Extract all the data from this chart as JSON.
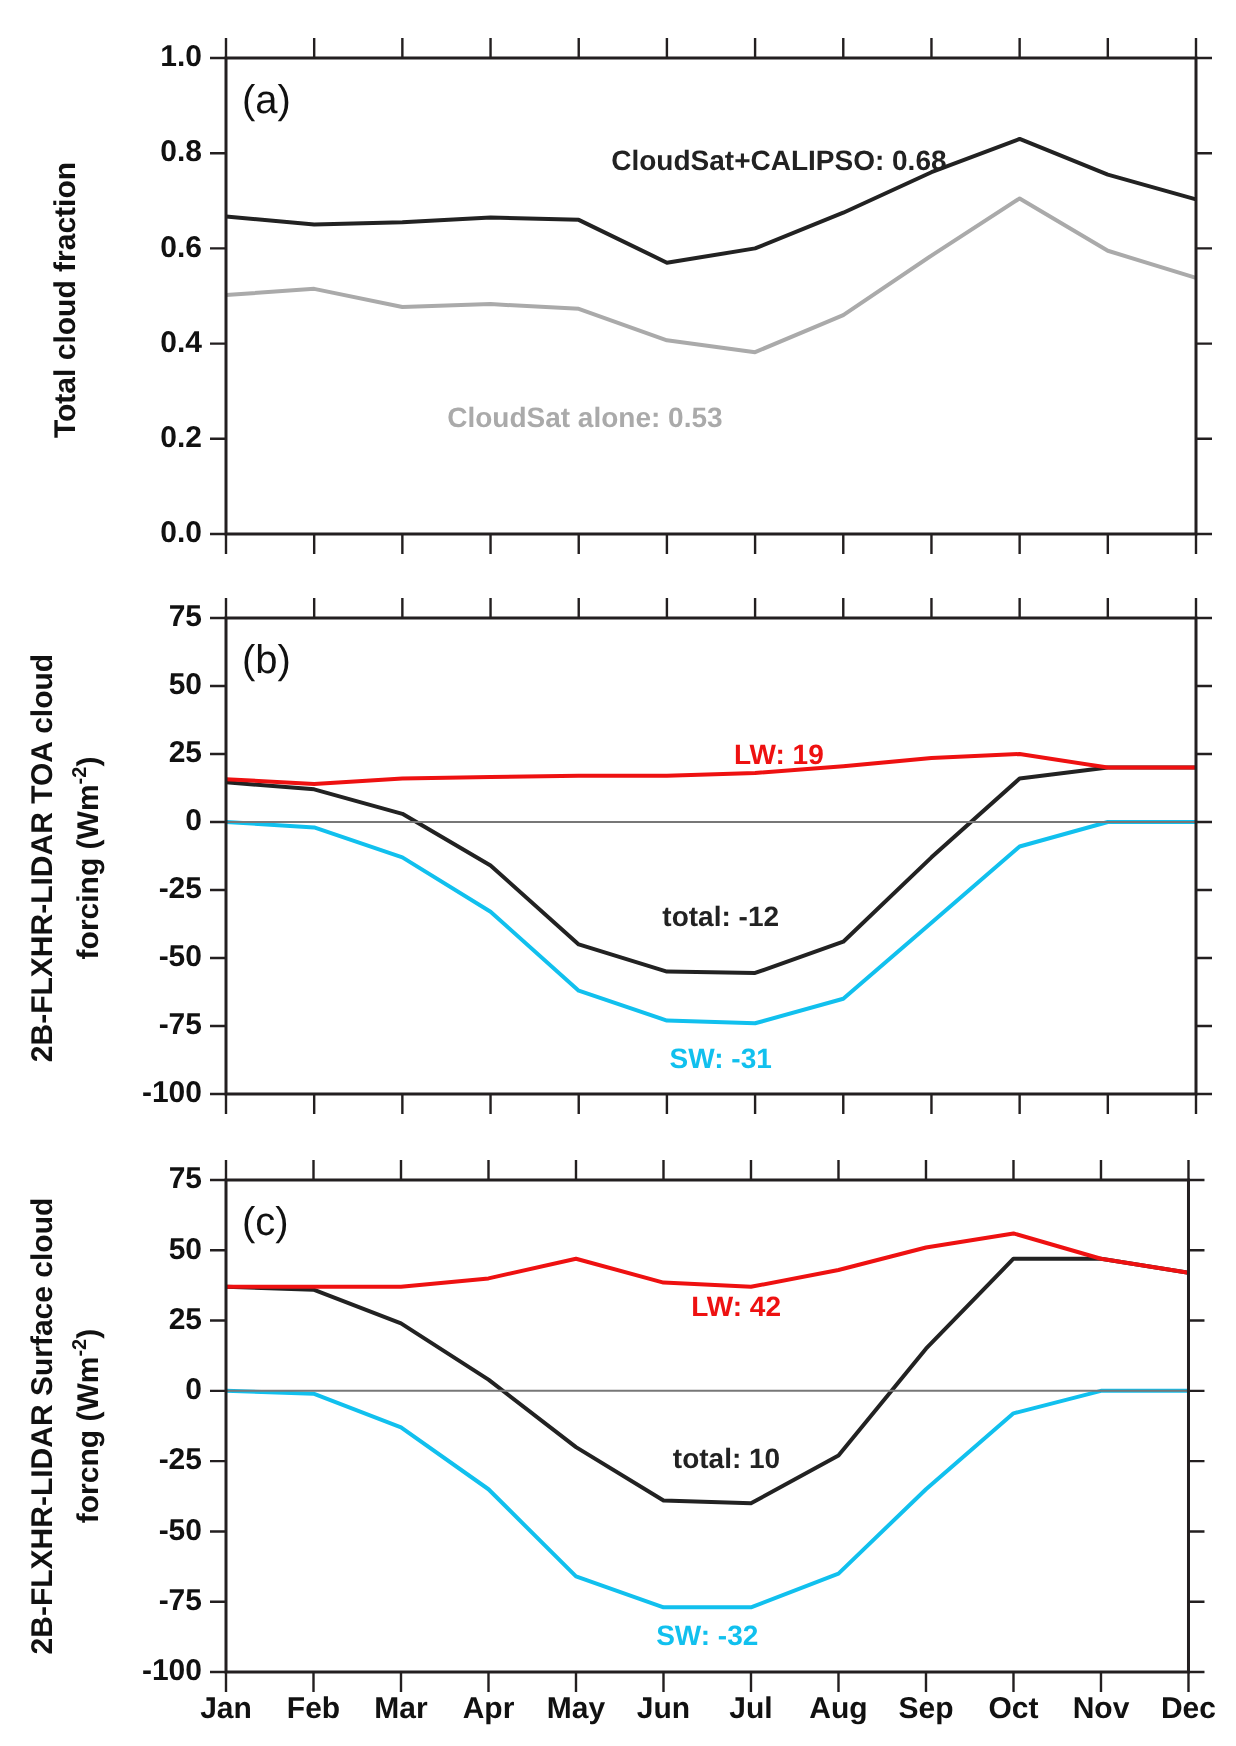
{
  "chart_data": [
    {
      "type": "line",
      "categories": [
        null,
        null,
        null,
        null,
        null,
        null,
        null,
        null,
        null,
        null,
        null,
        null
      ],
      "ylabel": "Total cloud fraction",
      "ylim": [
        0,
        1
      ],
      "yticks": [
        {
          "value": 0,
          "label": "0.0"
        },
        0.2,
        0.4,
        0.6,
        0.8,
        {
          "value": 1,
          "label": "1.0"
        }
      ],
      "tick_labels": "y",
      "grid": false,
      "legend": false,
      "marker": "none",
      "line_style": "solid",
      "annotations": [
        "(a)"
      ],
      "series": [
        {
          "name": "CloudSat+CALIPSO: 0.68",
          "color": "#222222",
          "values": [
            0.667,
            0.65,
            0.655,
            0.665,
            0.66,
            0.57,
            0.6,
            0.675,
            0.76,
            0.83,
            0.755,
            0.703
          ]
        },
        {
          "name": "CloudSat alone: 0.53",
          "color": "#aaaaaa",
          "values": [
            0.502,
            0.515,
            0.477,
            0.483,
            0.473,
            0.407,
            0.382,
            0.46,
            0.585,
            0.705,
            0.595,
            0.538
          ]
        }
      ]
    },
    {
      "type": "line",
      "categories": [
        null,
        null,
        null,
        null,
        null,
        null,
        null,
        null,
        null,
        null,
        null,
        null
      ],
      "ylabel": "2B-FLXHR-LIDAR TOA cloud forcing (Wm$^{-2}$)",
      "ylim": [
        -100,
        75
      ],
      "yticks": [
        -100,
        -75,
        -50,
        -25,
        0,
        25,
        50,
        75
      ],
      "tick_labels": "y",
      "grid": false,
      "legend": false,
      "marker": "none",
      "line_style": "solid",
      "annotations": [
        "(b)"
      ],
      "ref_lines": [
        {
          "axis": "y",
          "value": 0,
          "color": "#777777"
        }
      ],
      "series": [
        {
          "name": "LW: 19",
          "color": "#ee1111",
          "values": [
            15.7,
            14,
            16,
            16.5,
            17,
            17,
            18,
            20.5,
            23.5,
            25,
            20,
            20
          ]
        },
        {
          "name": "total: -12",
          "color": "#222222",
          "values": [
            14.6,
            12,
            3,
            -16,
            -45,
            -55,
            -55.5,
            -44,
            -13,
            16,
            20,
            20
          ]
        },
        {
          "name": "SW: -31",
          "color": "#11c0ee",
          "values": [
            0,
            -2,
            -13,
            -33,
            -62,
            -73,
            -74,
            -65,
            -37,
            -9,
            0,
            0
          ]
        }
      ]
    },
    {
      "type": "line",
      "categories": [
        "Jan",
        "Feb",
        "Mar",
        "Apr",
        "May",
        "Jun",
        "Jul",
        "Aug",
        "Sep",
        "Oct",
        "Nov",
        "Dec"
      ],
      "ylabel": "2B-FLXHR-LIDAR Surface cloud forcng (Wm$^{-2}$)",
      "ylim": [
        -100,
        75
      ],
      "yticks": [
        -100,
        -75,
        -50,
        -25,
        0,
        25,
        50,
        75
      ],
      "grid": false,
      "legend": false,
      "marker": "none",
      "line_style": "solid",
      "annotations": [
        "(c)"
      ],
      "ref_lines": [
        {
          "axis": "y",
          "value": 0,
          "color": "#777777"
        }
      ],
      "series": [
        {
          "name": "LW: 42",
          "color": "#ee1111",
          "values": [
            37,
            37,
            37,
            40,
            47,
            38.5,
            37,
            43,
            51,
            56,
            47,
            42
          ]
        },
        {
          "name": "total: 10",
          "color": "#222222",
          "values": [
            37,
            36,
            24,
            4,
            -20,
            -39,
            -40,
            -23,
            15,
            47,
            47,
            42
          ]
        },
        {
          "name": "SW: -32",
          "color": "#11c0ee",
          "values": [
            0,
            -1,
            -13,
            -35,
            -66,
            -77,
            -77,
            -65,
            -35,
            -8,
            0,
            0
          ]
        }
      ]
    }
  ]
}
